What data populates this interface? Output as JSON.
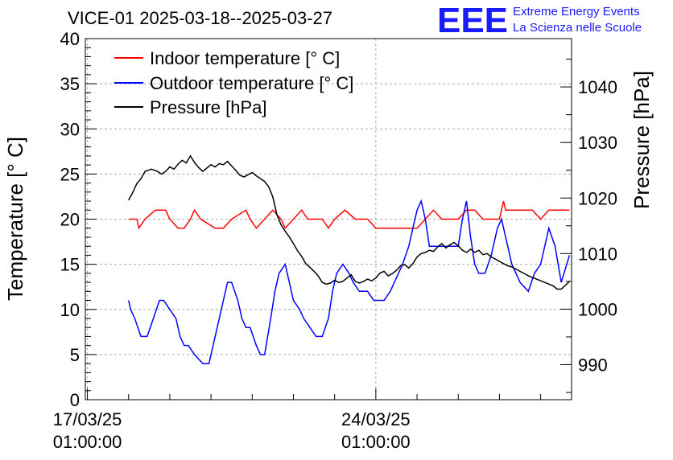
{
  "chart_data": {
    "type": "line",
    "title": "VICE-01 2025-03-18--2025-03-27",
    "ylabel_left": "Temperature [° C]",
    "ylabel_right": "Pressure [hPa]",
    "x_ticks": [
      {
        "day": 0,
        "label_line1": "17/03/25",
        "label_line2": "01:00:00"
      },
      {
        "day": 7,
        "label_line1": "24/03/25",
        "label_line2": "01:00:00"
      }
    ],
    "xlim_days": [
      -0.05,
      11.75
    ],
    "ylim_left": [
      0,
      40
    ],
    "yticks_left": [
      0,
      5,
      10,
      15,
      20,
      25,
      30,
      35,
      40
    ],
    "ylim_right": [
      983.7,
      1048.7
    ],
    "yticks_right": [
      990,
      1000,
      1010,
      1020,
      1030,
      1040
    ],
    "grid": true,
    "legend_position": "top-left",
    "series": [
      {
        "name": "Indoor temperature [° C]",
        "color": "#ff0000",
        "axis": "left",
        "x": [
          1.0,
          1.2,
          1.25,
          1.4,
          1.65,
          1.9,
          2.0,
          2.2,
          2.35,
          2.5,
          2.6,
          2.75,
          3.1,
          3.2,
          3.3,
          3.5,
          3.85,
          3.95,
          4.1,
          4.3,
          4.5,
          4.7,
          4.8,
          5.0,
          5.2,
          5.35,
          5.5,
          5.7,
          5.85,
          6.0,
          6.25,
          6.5,
          6.8,
          7.0,
          7.2,
          7.3,
          7.4,
          7.6,
          7.8,
          8.0,
          8.2,
          8.4,
          8.6,
          8.8,
          9.0,
          9.2,
          9.4,
          9.6,
          9.8,
          10.0,
          10.1,
          10.15,
          10.2,
          10.4,
          10.6,
          10.8,
          11.0,
          11.2,
          11.4,
          11.7
        ],
        "y": [
          20,
          20,
          19,
          20,
          21,
          21,
          20,
          19,
          19,
          20,
          21,
          20,
          19,
          19,
          19,
          20,
          21,
          20,
          19,
          20,
          21,
          20,
          19,
          20,
          21,
          20,
          20,
          20,
          19,
          20,
          21,
          20,
          20,
          19,
          19,
          19,
          19,
          19,
          19,
          19,
          20,
          21,
          20,
          20,
          20,
          21,
          21,
          20,
          20,
          20,
          22,
          21,
          21,
          21,
          21,
          21,
          20,
          21,
          21,
          21
        ]
      },
      {
        "name": "Outdoor temperature [° C]",
        "color": "#0000ff",
        "axis": "left",
        "x": [
          1.0,
          1.05,
          1.15,
          1.3,
          1.45,
          1.6,
          1.75,
          1.85,
          2.0,
          2.15,
          2.25,
          2.35,
          2.45,
          2.6,
          2.8,
          2.95,
          3.05,
          3.2,
          3.3,
          3.4,
          3.5,
          3.65,
          3.75,
          3.85,
          3.95,
          4.1,
          4.2,
          4.3,
          4.45,
          4.55,
          4.65,
          4.8,
          4.9,
          5.0,
          5.15,
          5.25,
          5.4,
          5.55,
          5.7,
          5.85,
          5.95,
          6.05,
          6.2,
          6.35,
          6.45,
          6.6,
          6.7,
          6.8,
          6.95,
          7.05,
          7.2,
          7.35,
          7.45,
          7.55,
          7.65,
          7.8,
          7.9,
          8.0,
          8.1,
          8.2,
          8.3,
          8.4,
          8.5,
          8.6,
          8.75,
          8.85,
          9.0,
          9.1,
          9.2,
          9.3,
          9.4,
          9.5,
          9.65,
          9.8,
          9.95,
          10.05,
          10.2,
          10.3,
          10.5,
          10.7,
          10.85,
          11.0,
          11.2,
          11.35,
          11.5,
          11.7
        ],
        "y": [
          11,
          10,
          9,
          7,
          7,
          9,
          11,
          11,
          10,
          9,
          7,
          6,
          6,
          5,
          4,
          4,
          6,
          9,
          11,
          13,
          13,
          11,
          9,
          8,
          8,
          6,
          5,
          5,
          9,
          12,
          14,
          15,
          13,
          11,
          10,
          9,
          8,
          7,
          7,
          9,
          12,
          14,
          15,
          14,
          13,
          12,
          12,
          12,
          11,
          11,
          11,
          12,
          13,
          14,
          15,
          17,
          19,
          21,
          22,
          20,
          17,
          17,
          17,
          17,
          17,
          17,
          17,
          20,
          22,
          18,
          15,
          14,
          14,
          16,
          19,
          20,
          17,
          15,
          13,
          12,
          14,
          15,
          19,
          17,
          13,
          16
        ]
      },
      {
        "name": "Pressure [hPa]",
        "color": "#000000",
        "axis": "right",
        "x": [
          1.0,
          1.1,
          1.2,
          1.3,
          1.4,
          1.55,
          1.7,
          1.8,
          1.9,
          2.0,
          2.1,
          2.2,
          2.3,
          2.4,
          2.5,
          2.6,
          2.7,
          2.8,
          2.9,
          3.0,
          3.1,
          3.2,
          3.3,
          3.4,
          3.5,
          3.6,
          3.7,
          3.8,
          3.9,
          4.0,
          4.1,
          4.2,
          4.3,
          4.4,
          4.5,
          4.6,
          4.7,
          4.8,
          4.9,
          5.0,
          5.1,
          5.2,
          5.3,
          5.4,
          5.5,
          5.6,
          5.7,
          5.8,
          5.9,
          6.0,
          6.1,
          6.2,
          6.3,
          6.4,
          6.5,
          6.6,
          6.7,
          6.8,
          6.9,
          7.0,
          7.1,
          7.2,
          7.3,
          7.4,
          7.5,
          7.6,
          7.7,
          7.8,
          7.9,
          8.0,
          8.1,
          8.2,
          8.3,
          8.4,
          8.5,
          8.6,
          8.7,
          8.8,
          8.9,
          9.0,
          9.1,
          9.2,
          9.3,
          9.4,
          9.5,
          9.6,
          9.7,
          9.8,
          9.9,
          10.0,
          10.1,
          10.2,
          10.3,
          10.5,
          10.7,
          10.9,
          11.1,
          11.3,
          11.4,
          11.5,
          11.7
        ],
        "y": [
          1019.6,
          1021.0,
          1022.6,
          1023.5,
          1024.8,
          1025.2,
          1024.8,
          1024.3,
          1024.8,
          1025.6,
          1025.2,
          1026.1,
          1026.8,
          1026.3,
          1027.6,
          1026.4,
          1025.5,
          1024.8,
          1025.4,
          1026.0,
          1025.6,
          1026.2,
          1026.0,
          1026.6,
          1025.8,
          1025.0,
          1024.1,
          1023.8,
          1024.2,
          1024.6,
          1024.0,
          1023.5,
          1023.0,
          1022.0,
          1020.2,
          1017.0,
          1015.2,
          1014.0,
          1013.0,
          1011.8,
          1010.5,
          1009.5,
          1008.2,
          1007.5,
          1006.8,
          1006.0,
          1004.8,
          1004.5,
          1004.7,
          1005.2,
          1004.8,
          1005.0,
          1005.6,
          1006.2,
          1005.0,
          1004.7,
          1005.0,
          1005.4,
          1005.1,
          1005.6,
          1006.5,
          1006.8,
          1006.0,
          1006.4,
          1007.0,
          1007.8,
          1008.0,
          1007.4,
          1008.2,
          1009.4,
          1010.0,
          1010.2,
          1010.6,
          1010.4,
          1011.2,
          1011.8,
          1011.0,
          1011.6,
          1012.0,
          1011.4,
          1010.6,
          1010.2,
          1010.8,
          1010.2,
          1010.6,
          1009.8,
          1010.0,
          1009.4,
          1009.0,
          1008.6,
          1008.2,
          1007.8,
          1007.6,
          1006.8,
          1006.0,
          1005.4,
          1004.8,
          1004.2,
          1003.6,
          1003.6,
          1005.0
        ]
      }
    ]
  },
  "logo": {
    "big": "EEE",
    "line1": "Extreme Energy Events",
    "line2": "La Scienza nelle Scuole"
  }
}
